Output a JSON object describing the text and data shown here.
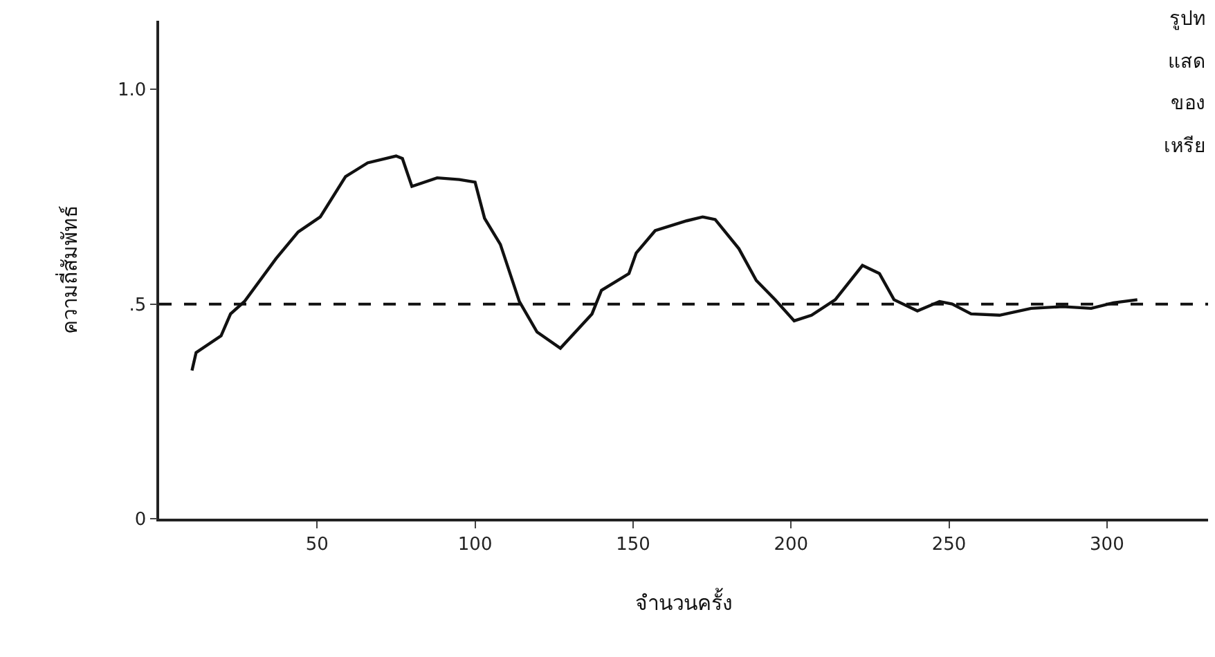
{
  "chart_data": {
    "type": "line",
    "xlabel": "จำนวนครั้ง",
    "ylabel": "ความถี่สัมพัทธ์",
    "annotations": [
      "รูปท",
      "แสด",
      "ของ",
      "เหรีย"
    ],
    "x": [
      10.4,
      11.7,
      19.6,
      22.6,
      27,
      37,
      44,
      51,
      59,
      66,
      75,
      77,
      80,
      88,
      95,
      100,
      103,
      108,
      114,
      119.6,
      127,
      137,
      140,
      148.7,
      151,
      157,
      167,
      172,
      176,
      183.5,
      189,
      195,
      201,
      206.5,
      214,
      222.6,
      228,
      232.6,
      240,
      247,
      251,
      257,
      266,
      276,
      286,
      295,
      302,
      309.6
    ],
    "series": [
      {
        "color": "#111111",
        "values": [
          0.345,
          0.387,
          0.426,
          0.477,
          0.506,
          0.606,
          0.668,
          0.703,
          0.797,
          0.829,
          0.845,
          0.839,
          0.774,
          0.794,
          0.79,
          0.784,
          0.7,
          0.639,
          0.506,
          0.435,
          0.397,
          0.477,
          0.532,
          0.571,
          0.619,
          0.671,
          0.694,
          0.703,
          0.697,
          0.629,
          0.555,
          0.51,
          0.461,
          0.474,
          0.51,
          0.59,
          0.571,
          0.51,
          0.484,
          0.506,
          0.5,
          0.477,
          0.474,
          0.49,
          0.494,
          0.49,
          0.503,
          0.51
        ]
      }
    ],
    "xlim": [
      0,
      332
    ],
    "xticks": [
      50,
      100,
      150,
      200,
      250,
      300
    ],
    "ylim": [
      0,
      1.16
    ],
    "yticks": [
      0,
      {
        "value": 0.5,
        "label": ".5"
      },
      {
        "value": 1,
        "label": "1.0"
      }
    ],
    "ref_lines": [
      {
        "axis": "y",
        "value": 0.5,
        "line_style": "dashed",
        "color": "#111111"
      }
    ],
    "marker": "none",
    "line_style": "solid"
  }
}
